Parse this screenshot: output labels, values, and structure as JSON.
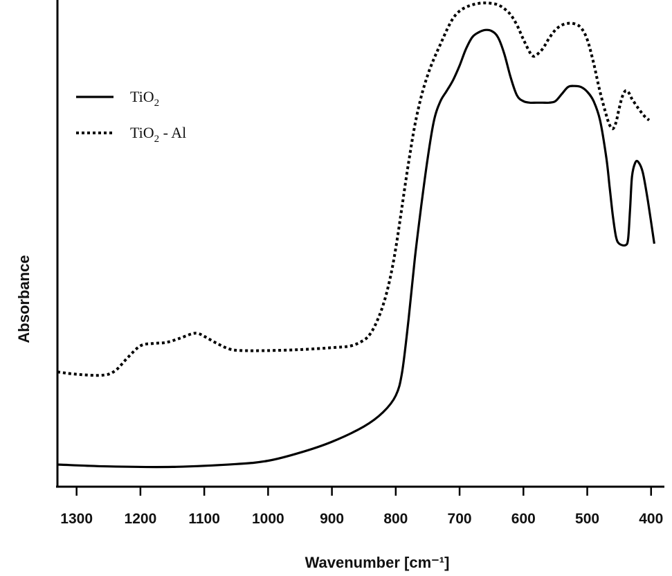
{
  "chart_data": {
    "type": "line",
    "title": "",
    "xlabel": "Wavenumber [cm⁻¹]",
    "ylabel": "Absorbance",
    "x_reversed": true,
    "xlim": [
      1330,
      390
    ],
    "ylim": [
      0,
      1
    ],
    "grid": false,
    "legend_position": "top-left",
    "x_ticks": [
      1300,
      1200,
      1100,
      1000,
      900,
      800,
      700,
      600,
      500,
      400
    ],
    "y_ticks": [],
    "series": [
      {
        "name": "TiO₂",
        "style": "solid",
        "color": "#000000",
        "points": [
          [
            1330,
            0.035
          ],
          [
            1250,
            0.031
          ],
          [
            1150,
            0.03
          ],
          [
            1050,
            0.036
          ],
          [
            1000,
            0.043
          ],
          [
            950,
            0.06
          ],
          [
            900,
            0.083
          ],
          [
            850,
            0.115
          ],
          [
            820,
            0.145
          ],
          [
            800,
            0.18
          ],
          [
            790,
            0.23
          ],
          [
            780,
            0.34
          ],
          [
            770,
            0.47
          ],
          [
            760,
            0.58
          ],
          [
            750,
            0.68
          ],
          [
            740,
            0.76
          ],
          [
            730,
            0.8
          ],
          [
            720,
            0.822
          ],
          [
            710,
            0.845
          ],
          [
            700,
            0.875
          ],
          [
            690,
            0.91
          ],
          [
            680,
            0.935
          ],
          [
            670,
            0.945
          ],
          [
            660,
            0.95
          ],
          [
            650,
            0.948
          ],
          [
            640,
            0.935
          ],
          [
            630,
            0.9
          ],
          [
            620,
            0.85
          ],
          [
            610,
            0.812
          ],
          [
            600,
            0.8
          ],
          [
            590,
            0.797
          ],
          [
            580,
            0.797
          ],
          [
            570,
            0.797
          ],
          [
            560,
            0.797
          ],
          [
            550,
            0.8
          ],
          [
            540,
            0.815
          ],
          [
            530,
            0.83
          ],
          [
            520,
            0.832
          ],
          [
            510,
            0.83
          ],
          [
            500,
            0.82
          ],
          [
            490,
            0.8
          ],
          [
            480,
            0.76
          ],
          [
            470,
            0.68
          ],
          [
            465,
            0.62
          ],
          [
            460,
            0.56
          ],
          [
            455,
            0.515
          ],
          [
            450,
            0.5
          ],
          [
            440,
            0.497
          ],
          [
            436,
            0.51
          ],
          [
            433,
            0.57
          ],
          [
            430,
            0.64
          ],
          [
            425,
            0.67
          ],
          [
            420,
            0.672
          ],
          [
            413,
            0.65
          ],
          [
            405,
            0.59
          ],
          [
            395,
            0.5
          ]
        ]
      },
      {
        "name": "TiO₂ - Al",
        "style": "dotted",
        "color": "#000000",
        "points": [
          [
            1330,
            0.23
          ],
          [
            1300,
            0.225
          ],
          [
            1260,
            0.223
          ],
          [
            1240,
            0.232
          ],
          [
            1220,
            0.26
          ],
          [
            1200,
            0.285
          ],
          [
            1180,
            0.29
          ],
          [
            1160,
            0.292
          ],
          [
            1140,
            0.3
          ],
          [
            1120,
            0.31
          ],
          [
            1110,
            0.311
          ],
          [
            1100,
            0.305
          ],
          [
            1080,
            0.29
          ],
          [
            1060,
            0.278
          ],
          [
            1040,
            0.275
          ],
          [
            1000,
            0.275
          ],
          [
            950,
            0.277
          ],
          [
            900,
            0.281
          ],
          [
            870,
            0.285
          ],
          [
            850,
            0.297
          ],
          [
            840,
            0.31
          ],
          [
            830,
            0.335
          ],
          [
            820,
            0.37
          ],
          [
            810,
            0.42
          ],
          [
            800,
            0.49
          ],
          [
            790,
            0.58
          ],
          [
            780,
            0.67
          ],
          [
            770,
            0.75
          ],
          [
            760,
            0.81
          ],
          [
            750,
            0.855
          ],
          [
            740,
            0.89
          ],
          [
            730,
            0.92
          ],
          [
            720,
            0.95
          ],
          [
            710,
            0.975
          ],
          [
            700,
            0.99
          ],
          [
            690,
            0.998
          ],
          [
            680,
            1.003
          ],
          [
            670,
            1.006
          ],
          [
            660,
            1.007
          ],
          [
            650,
            1.006
          ],
          [
            640,
            1.003
          ],
          [
            630,
            0.995
          ],
          [
            620,
            0.982
          ],
          [
            610,
            0.96
          ],
          [
            600,
            0.93
          ],
          [
            590,
            0.903
          ],
          [
            585,
            0.895
          ],
          [
            580,
            0.897
          ],
          [
            570,
            0.91
          ],
          [
            560,
            0.932
          ],
          [
            550,
            0.95
          ],
          [
            540,
            0.96
          ],
          [
            530,
            0.964
          ],
          [
            520,
            0.963
          ],
          [
            510,
            0.955
          ],
          [
            500,
            0.93
          ],
          [
            490,
            0.88
          ],
          [
            480,
            0.82
          ],
          [
            470,
            0.77
          ],
          [
            465,
            0.75
          ],
          [
            460,
            0.742
          ],
          [
            455,
            0.755
          ],
          [
            450,
            0.785
          ],
          [
            445,
            0.81
          ],
          [
            440,
            0.822
          ],
          [
            435,
            0.818
          ],
          [
            430,
            0.805
          ],
          [
            420,
            0.785
          ],
          [
            410,
            0.768
          ],
          [
            403,
            0.76
          ]
        ]
      }
    ]
  }
}
